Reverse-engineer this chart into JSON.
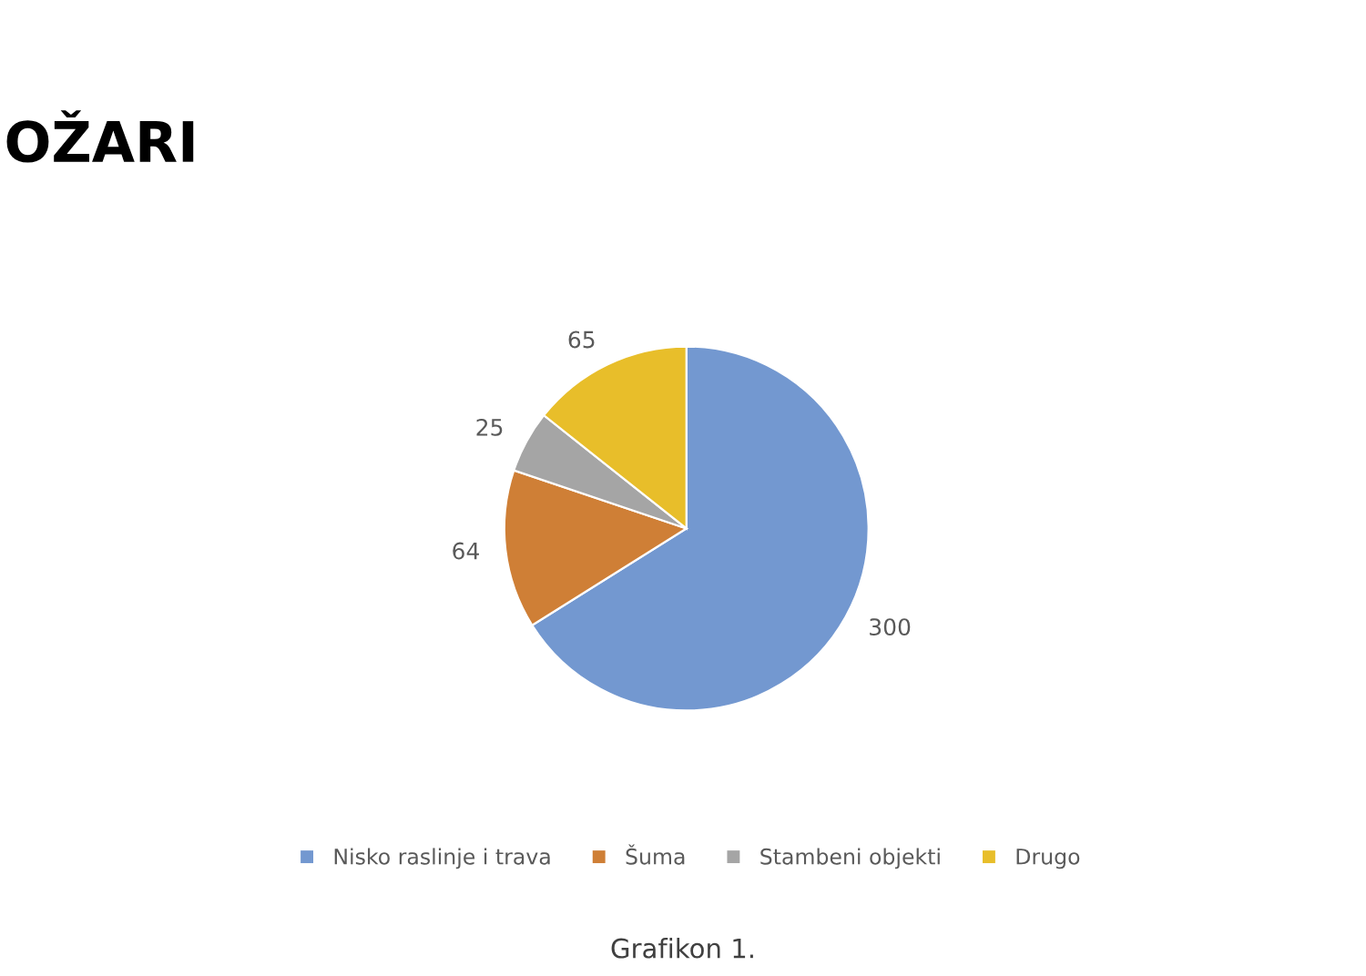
{
  "chart_data": {
    "type": "pie",
    "title": "OŽARI",
    "categories": [
      "Nisko raslinje i trava",
      "Šuma",
      "Stambeni objekti",
      "Drugo"
    ],
    "values": [
      300,
      64,
      25,
      65
    ],
    "colors": [
      "#7398d0",
      "#cf7f36",
      "#a5a5a5",
      "#e8be2a"
    ],
    "data_labels": true,
    "legend": "bottom",
    "annotations": [
      "Grafikon 1."
    ]
  }
}
